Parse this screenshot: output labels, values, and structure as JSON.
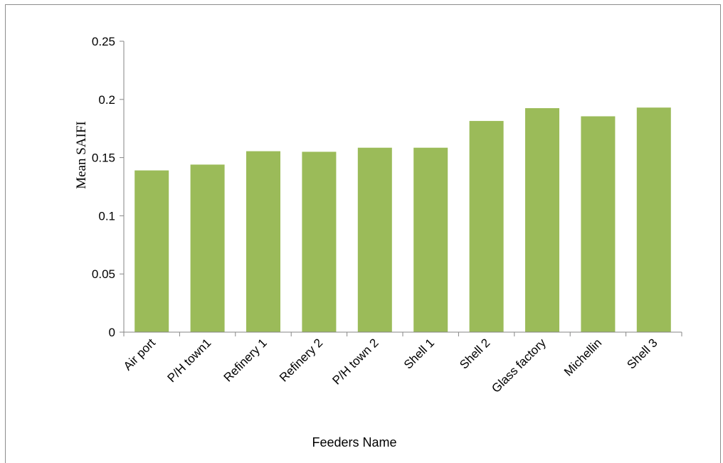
{
  "chart_data": {
    "type": "bar",
    "title": "",
    "xlabel": "Feeders Name",
    "ylabel": "Mean SAIFI",
    "categories": [
      "Air port",
      "P/H town1",
      "Refinery 1",
      "Refinery 2",
      "P/H town 2",
      "Shell 1",
      "Shell 2",
      "Glass factory",
      "Michellin",
      "Shell 3"
    ],
    "values": [
      0.139,
      0.144,
      0.1555,
      0.155,
      0.1585,
      0.1585,
      0.1815,
      0.1925,
      0.1855,
      0.193
    ],
    "ylim": [
      0,
      0.25
    ],
    "yticks": [
      "0",
      "0.05",
      "0.1",
      "0.15",
      "0.2",
      "0.25"
    ],
    "ytick_values": [
      0,
      0.05,
      0.1,
      0.15,
      0.2,
      0.25
    ],
    "grid": false,
    "legend": "none",
    "bar_color": "#9bbb59",
    "axis_color": "#868686"
  }
}
